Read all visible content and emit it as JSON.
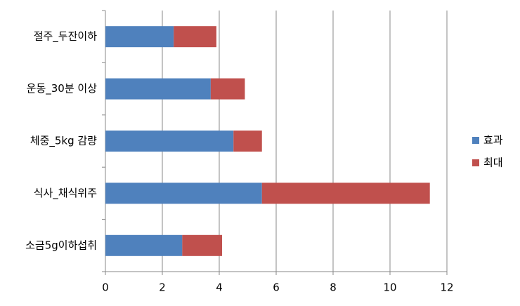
{
  "chart_data": {
    "type": "stacked_barh",
    "categories": [
      "절주_두잔이하",
      "운동_30분 이상",
      "체중_5kg 감량",
      "식사_채식위주",
      "소금5g이하섭취"
    ],
    "series": [
      {
        "name": "효과",
        "color": "#4f81bd",
        "values": [
          2.4,
          3.7,
          4.5,
          5.5,
          2.7
        ]
      },
      {
        "name": "최대",
        "color": "#c0504d",
        "values": [
          1.5,
          1.2,
          1.0,
          5.9,
          1.4
        ]
      }
    ],
    "xlim": [
      0,
      12
    ],
    "xticks": [
      0,
      2,
      4,
      6,
      8,
      10,
      12
    ],
    "grid": true,
    "legend": "right"
  }
}
